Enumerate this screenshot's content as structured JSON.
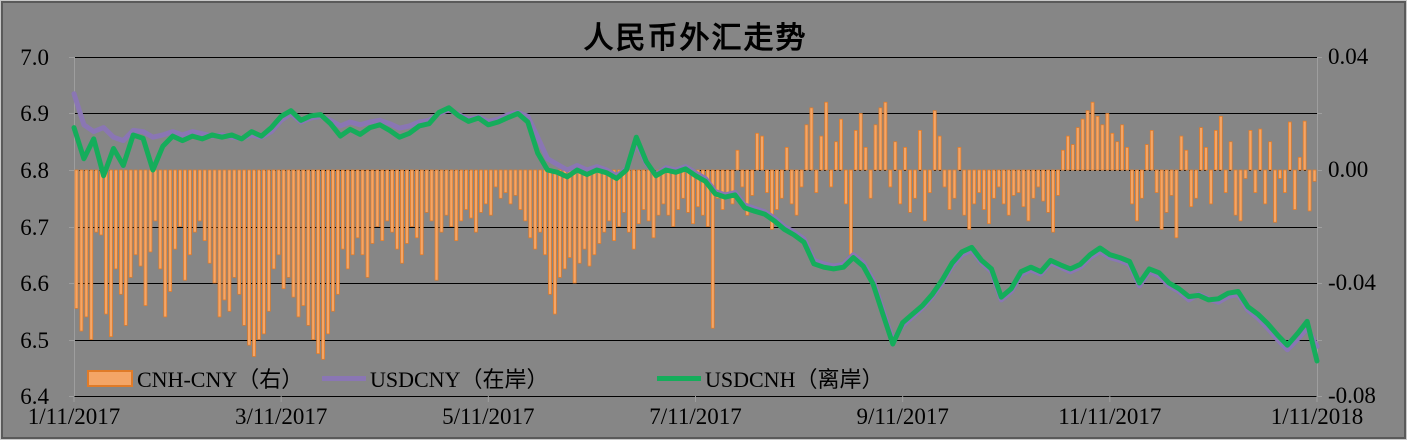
{
  "page": {
    "background": "#868686",
    "frame_border_dark": "#5a5a5a",
    "frame_border_light": "#c9c9c9"
  },
  "chart_data": {
    "type": "combo",
    "title": "人民币外汇走势",
    "grid": {
      "color": "#000000",
      "axis_color": "#9e9e9e",
      "zero_line_dotted": true
    },
    "x_axis": {
      "tick_labels": [
        "1/11/2017",
        "3/11/2017",
        "5/11/2017",
        "7/11/2017",
        "9/11/2017",
        "11/11/2017",
        "1/11/2018"
      ],
      "domain_days": 252
    },
    "y_axis_left": {
      "tick_labels": [
        "7.0",
        "6.9",
        "6.8",
        "6.7",
        "6.6",
        "6.5",
        "6.4"
      ],
      "min": 6.4,
      "max": 7.0
    },
    "y_axis_right": {
      "tick_labels": [
        "0.04",
        "0.00",
        "-0.04",
        "-0.08"
      ],
      "min": -0.08,
      "max": 0.04
    },
    "series": [
      {
        "name": "CNH-CNY（右）",
        "type": "bar",
        "axis": "right",
        "fill": "#F4A566",
        "stroke": "#E07B28",
        "values": [
          -0.049,
          -0.057,
          -0.052,
          -0.06,
          -0.022,
          -0.023,
          -0.051,
          -0.059,
          -0.035,
          -0.044,
          -0.055,
          -0.038,
          -0.03,
          -0.034,
          -0.048,
          -0.029,
          -0.018,
          -0.035,
          -0.052,
          -0.043,
          -0.028,
          -0.02,
          -0.039,
          -0.03,
          -0.022,
          -0.018,
          -0.025,
          -0.033,
          -0.04,
          -0.052,
          -0.046,
          -0.05,
          -0.038,
          -0.044,
          -0.055,
          -0.062,
          -0.066,
          -0.06,
          -0.058,
          -0.05,
          -0.035,
          -0.03,
          -0.042,
          -0.038,
          -0.045,
          -0.052,
          -0.048,
          -0.055,
          -0.06,
          -0.065,
          -0.067,
          -0.058,
          -0.05,
          -0.044,
          -0.028,
          -0.035,
          -0.03,
          -0.024,
          -0.03,
          -0.038,
          -0.026,
          -0.02,
          -0.025,
          -0.018,
          -0.022,
          -0.028,
          -0.033,
          -0.026,
          -0.02,
          -0.024,
          -0.03,
          -0.015,
          -0.018,
          -0.039,
          -0.022,
          -0.016,
          -0.02,
          -0.025,
          -0.018,
          -0.014,
          -0.017,
          -0.022,
          -0.015,
          -0.012,
          -0.016,
          -0.006,
          -0.01,
          -0.008,
          -0.012,
          -0.009,
          -0.014,
          -0.018,
          -0.024,
          -0.028,
          -0.022,
          -0.03,
          -0.044,
          -0.051,
          -0.038,
          -0.035,
          -0.031,
          -0.04,
          -0.033,
          -0.028,
          -0.034,
          -0.03,
          -0.026,
          -0.022,
          -0.018,
          -0.025,
          -0.02,
          -0.015,
          -0.022,
          -0.028,
          -0.019,
          -0.014,
          -0.018,
          -0.024,
          -0.016,
          -0.012,
          -0.016,
          -0.02,
          -0.014,
          -0.01,
          -0.015,
          -0.019,
          -0.013,
          -0.016,
          -0.02,
          -0.056,
          -0.01,
          -0.014,
          -0.008,
          -0.012,
          0.007,
          -0.006,
          -0.016,
          -0.009,
          0.013,
          0.012,
          -0.008,
          -0.021,
          -0.014,
          -0.01,
          0.008,
          -0.012,
          -0.016,
          -0.006,
          0.016,
          0.022,
          -0.008,
          0.012,
          0.024,
          -0.006,
          0.01,
          0.018,
          -0.012,
          -0.03,
          0.014,
          0.02,
          0.008,
          -0.01,
          0.016,
          0.022,
          0.024,
          -0.006,
          0.01,
          -0.012,
          0.008,
          -0.015,
          -0.01,
          0.014,
          -0.018,
          -0.008,
          0.021,
          0.012,
          -0.006,
          -0.014,
          -0.01,
          0.008,
          -0.016,
          -0.021,
          -0.012,
          -0.008,
          -0.014,
          -0.019,
          -0.01,
          -0.006,
          -0.012,
          -0.016,
          -0.009,
          -0.008,
          -0.013,
          -0.018,
          -0.01,
          -0.006,
          -0.011,
          -0.015,
          -0.022,
          -0.009,
          0.007,
          0.012,
          0.009,
          0.015,
          0.018,
          0.021,
          0.024,
          0.019,
          0.016,
          0.02,
          0.013,
          0.01,
          0.016,
          0.008,
          -0.012,
          -0.018,
          -0.01,
          0.009,
          0.014,
          -0.008,
          -0.021,
          -0.015,
          -0.009,
          -0.024,
          0.012,
          0.007,
          -0.013,
          -0.01,
          0.015,
          0.008,
          -0.012,
          0.014,
          0.019,
          -0.008,
          0.01,
          -0.016,
          -0.018,
          -0.003,
          0.014,
          -0.008,
          0.0145,
          -0.012,
          0.01,
          -0.0185,
          -0.003,
          -0.008,
          0.017,
          -0.014,
          0.0045,
          0.0173,
          -0.0145,
          -0.004
        ]
      },
      {
        "name": "USDCNY（在岸）",
        "type": "line",
        "axis": "left",
        "color": "#8A76B4",
        "x_step_days": 2,
        "values": [
          6.935,
          6.88,
          6.868,
          6.875,
          6.858,
          6.852,
          6.87,
          6.868,
          6.858,
          6.862,
          6.868,
          6.862,
          6.868,
          6.864,
          6.86,
          6.862,
          6.858,
          6.856,
          6.862,
          6.858,
          6.868,
          6.888,
          6.9,
          6.885,
          6.892,
          6.895,
          6.888,
          6.878,
          6.885,
          6.88,
          6.885,
          6.888,
          6.882,
          6.874,
          6.878,
          6.885,
          6.888,
          6.9,
          6.907,
          6.898,
          6.89,
          6.894,
          6.886,
          6.89,
          6.898,
          6.902,
          6.895,
          6.858,
          6.82,
          6.81,
          6.8,
          6.808,
          6.8,
          6.806,
          6.8,
          6.79,
          6.802,
          6.85,
          6.812,
          6.792,
          6.804,
          6.8,
          6.806,
          6.795,
          6.785,
          6.762,
          6.756,
          6.76,
          6.738,
          6.732,
          6.726,
          6.715,
          6.7,
          6.69,
          6.678,
          6.64,
          6.634,
          6.63,
          6.633,
          6.65,
          6.636,
          6.605,
          6.552,
          6.498,
          6.525,
          6.54,
          6.556,
          6.576,
          6.6,
          6.63,
          6.65,
          6.658,
          6.636,
          6.62,
          6.57,
          6.585,
          6.615,
          6.623,
          6.616,
          6.636,
          6.628,
          6.62,
          6.628,
          6.645,
          6.656,
          6.645,
          6.64,
          6.633,
          6.595,
          6.62,
          6.612,
          6.595,
          6.585,
          6.57,
          6.58,
          6.572,
          6.566,
          6.576,
          6.58,
          6.552,
          6.538,
          6.52,
          6.5,
          6.482,
          6.5,
          6.52,
          6.488
        ]
      },
      {
        "name": "USDCNH（离岸）",
        "type": "line",
        "axis": "left",
        "color": "#15AD5B",
        "x_step_days": 2,
        "values": [
          6.875,
          6.82,
          6.855,
          6.79,
          6.838,
          6.808,
          6.862,
          6.856,
          6.8,
          6.842,
          6.86,
          6.852,
          6.86,
          6.855,
          6.862,
          6.858,
          6.862,
          6.855,
          6.868,
          6.86,
          6.875,
          6.895,
          6.905,
          6.888,
          6.896,
          6.898,
          6.882,
          6.86,
          6.872,
          6.863,
          6.875,
          6.88,
          6.87,
          6.858,
          6.865,
          6.878,
          6.882,
          6.902,
          6.91,
          6.896,
          6.886,
          6.892,
          6.88,
          6.885,
          6.893,
          6.9,
          6.885,
          6.83,
          6.8,
          6.796,
          6.788,
          6.8,
          6.792,
          6.8,
          6.795,
          6.785,
          6.8,
          6.858,
          6.815,
          6.79,
          6.8,
          6.796,
          6.802,
          6.79,
          6.78,
          6.758,
          6.752,
          6.756,
          6.733,
          6.727,
          6.722,
          6.71,
          6.695,
          6.685,
          6.672,
          6.634,
          6.628,
          6.625,
          6.628,
          6.645,
          6.63,
          6.598,
          6.545,
          6.492,
          6.53,
          6.545,
          6.56,
          6.58,
          6.605,
          6.635,
          6.655,
          6.663,
          6.64,
          6.625,
          6.575,
          6.59,
          6.62,
          6.628,
          6.62,
          6.64,
          6.632,
          6.625,
          6.633,
          6.65,
          6.662,
          6.65,
          6.645,
          6.638,
          6.6,
          6.625,
          6.618,
          6.6,
          6.59,
          6.576,
          6.578,
          6.57,
          6.572,
          6.582,
          6.585,
          6.558,
          6.545,
          6.528,
          6.508,
          6.49,
          6.51,
          6.532,
          6.462
        ]
      }
    ]
  }
}
